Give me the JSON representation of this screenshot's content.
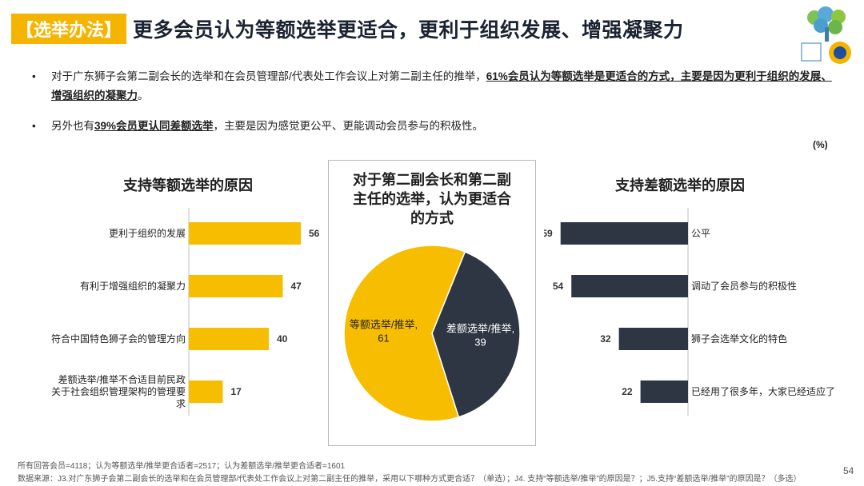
{
  "header": {
    "tag": "【选举办法】",
    "title": "更多会员认为等额选举更适合，更利于组织发展、增强凝聚力"
  },
  "bullets": [
    {
      "pre": "对于广东狮子会第二副会长的选举和在会员管理部/代表处工作会议上对第二副主任的推举，",
      "highlight": "61%会员认为等额选举是更适合的方式，主要是因为更利于组织的发展、增强组织的凝聚力",
      "post": "。"
    },
    {
      "pre": "另外也有",
      "highlight": "39%会员更认同差额选举",
      "post": "，主要是因为感觉更公平、更能调动会员参与的积极性。"
    }
  ],
  "unit": "(%)",
  "colors": {
    "yellow": "#f7bd00",
    "navy": "#2e3644",
    "tag": "#f4b400"
  },
  "chart_data": [
    {
      "type": "bar",
      "orientation": "horizontal",
      "title": "支持等额选举的原因",
      "categories": [
        "更利于组织的发展",
        "有利于增强组织的凝聚力",
        "符合中国特色狮子会的管理方向",
        "差额选举/推举不合适目前民政关于社会组织管理架构的管理要求"
      ],
      "values": [
        56,
        47,
        40,
        17
      ],
      "color": "#f7bd00",
      "xlim": [
        0,
        60
      ]
    },
    {
      "type": "pie",
      "title": "对于第二副会长和第二副主任的选举，认为更适合的方式",
      "slices": [
        {
          "label": "等额选举/推举",
          "value": 61,
          "display": "等额选举/推举, 61",
          "color": "#f7bd00"
        },
        {
          "label": "差额选举/推举",
          "value": 39,
          "display": "差额选举/推举, 39",
          "color": "#2e3644"
        }
      ]
    },
    {
      "type": "bar",
      "orientation": "horizontal",
      "title": "支持差额选举的原因",
      "categories": [
        "公平",
        "调动了会员参与的积极性",
        "狮子会选举文化的特色",
        "已经用了很多年，大家已经适应了"
      ],
      "values": [
        59,
        54,
        32,
        22
      ],
      "color": "#2e3644",
      "xlim": [
        0,
        60
      ]
    }
  ],
  "footer": {
    "base": "所有回答会员=4118；认为等额选举/推举更合适者=2517；认为差额选举/推举更合适者=1601",
    "source": "数据来源：J3.对广东狮子会第二副会长的选举和在会员管理部/代表处工作会议上对第二副主任的推举，采用以下哪种方式更合适？（单选）；J4. 支持“等额选举/推举”的原因是？；J5.支持“差额选举/推举”的原因是？（多选）",
    "page": "54"
  }
}
